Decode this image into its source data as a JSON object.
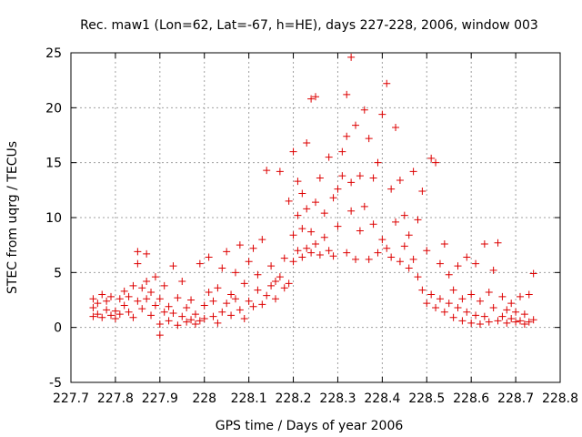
{
  "chart_data": {
    "type": "scatter",
    "title": "Rec. maw1 (Lon=62, Lat=-67, h=HE), days 227-228, 2006, window 003",
    "xlabel": "GPS time / Days of year 2006",
    "ylabel": "STEC from uqrg / TECUs",
    "xlim": [
      227.7,
      228.8
    ],
    "ylim": [
      -5,
      25
    ],
    "x_ticks": [
      227.7,
      227.8,
      227.9,
      228.0,
      228.1,
      228.2,
      228.3,
      228.4,
      228.5,
      228.6,
      228.7,
      228.8
    ],
    "x_tick_labels": [
      "227.7",
      "227.8",
      "227.9",
      "228",
      "228.1",
      "228.2",
      "228.3",
      "228.4",
      "228.5",
      "228.6",
      "228.7",
      "228.8"
    ],
    "y_ticks": [
      -5,
      0,
      5,
      10,
      15,
      20,
      25
    ],
    "y_tick_labels": [
      "-5",
      "0",
      "5",
      "10",
      "15",
      "20",
      "25"
    ],
    "grid": true,
    "marker": "plus",
    "color": "#dd0000",
    "points": [
      [
        227.75,
        1.0
      ],
      [
        227.75,
        1.8
      ],
      [
        227.75,
        2.6
      ],
      [
        227.76,
        1.2
      ],
      [
        227.76,
        2.2
      ],
      [
        227.77,
        0.9
      ],
      [
        227.77,
        3.0
      ],
      [
        227.78,
        1.6
      ],
      [
        227.78,
        2.4
      ],
      [
        227.79,
        1.1
      ],
      [
        227.79,
        2.8
      ],
      [
        227.8,
        1.5
      ],
      [
        227.8,
        0.8
      ],
      [
        227.81,
        2.6
      ],
      [
        227.81,
        1.2
      ],
      [
        227.82,
        2.0
      ],
      [
        227.82,
        3.3
      ],
      [
        227.83,
        1.4
      ],
      [
        227.83,
        2.8
      ],
      [
        227.84,
        3.8
      ],
      [
        227.84,
        0.9
      ],
      [
        227.85,
        2.4
      ],
      [
        227.85,
        6.9
      ],
      [
        227.85,
        5.8
      ],
      [
        227.86,
        1.7
      ],
      [
        227.86,
        3.6
      ],
      [
        227.87,
        2.6
      ],
      [
        227.87,
        4.2
      ],
      [
        227.87,
        6.7
      ],
      [
        227.88,
        1.1
      ],
      [
        227.88,
        3.2
      ],
      [
        227.89,
        2.0
      ],
      [
        227.89,
        4.6
      ],
      [
        227.9,
        0.3
      ],
      [
        227.9,
        2.6
      ],
      [
        227.9,
        -0.7
      ],
      [
        227.91,
        1.4
      ],
      [
        227.91,
        3.8
      ],
      [
        227.92,
        0.6
      ],
      [
        227.92,
        1.9
      ],
      [
        227.93,
        1.3
      ],
      [
        227.93,
        5.6
      ],
      [
        227.94,
        0.2
      ],
      [
        227.94,
        2.7
      ],
      [
        227.95,
        1.0
      ],
      [
        227.95,
        4.2
      ],
      [
        227.96,
        0.5
      ],
      [
        227.96,
        1.8
      ],
      [
        227.97,
        0.7
      ],
      [
        227.97,
        2.5
      ],
      [
        227.98,
        0.3
      ],
      [
        227.98,
        1.2
      ],
      [
        227.99,
        5.8
      ],
      [
        227.99,
        0.6
      ],
      [
        228.0,
        0.8
      ],
      [
        228.0,
        2.0
      ],
      [
        228.01,
        6.4
      ],
      [
        228.01,
        3.2
      ],
      [
        228.02,
        1.0
      ],
      [
        228.02,
        2.4
      ],
      [
        228.03,
        0.4
      ],
      [
        228.03,
        3.6
      ],
      [
        228.04,
        1.4
      ],
      [
        228.04,
        5.4
      ],
      [
        228.05,
        2.2
      ],
      [
        228.05,
        6.9
      ],
      [
        228.06,
        1.1
      ],
      [
        228.06,
        3.0
      ],
      [
        228.07,
        2.6
      ],
      [
        228.07,
        5.0
      ],
      [
        228.08,
        1.6
      ],
      [
        228.08,
        7.5
      ],
      [
        228.09,
        0.8
      ],
      [
        228.09,
        4.0
      ],
      [
        228.1,
        2.4
      ],
      [
        228.1,
        6.0
      ],
      [
        228.11,
        1.9
      ],
      [
        228.11,
        7.2
      ],
      [
        228.12,
        3.4
      ],
      [
        228.12,
        4.8
      ],
      [
        228.13,
        2.1
      ],
      [
        228.13,
        8.0
      ],
      [
        228.14,
        2.9
      ],
      [
        228.14,
        14.3
      ],
      [
        228.15,
        3.8
      ],
      [
        228.15,
        5.6
      ],
      [
        228.16,
        4.2
      ],
      [
        228.16,
        2.6
      ],
      [
        228.17,
        14.2
      ],
      [
        228.17,
        4.6
      ],
      [
        228.18,
        3.6
      ],
      [
        228.18,
        6.3
      ],
      [
        228.19,
        4.0
      ],
      [
        228.19,
        11.5
      ],
      [
        228.2,
        6.0
      ],
      [
        228.2,
        8.4
      ],
      [
        228.2,
        16.0
      ],
      [
        228.21,
        7.0
      ],
      [
        228.21,
        10.2
      ],
      [
        228.21,
        13.3
      ],
      [
        228.22,
        6.4
      ],
      [
        228.22,
        9.0
      ],
      [
        228.22,
        12.2
      ],
      [
        228.23,
        7.2
      ],
      [
        228.23,
        10.8
      ],
      [
        228.23,
        16.8
      ],
      [
        228.24,
        6.8
      ],
      [
        228.24,
        20.8
      ],
      [
        228.24,
        8.7
      ],
      [
        228.25,
        7.6
      ],
      [
        228.25,
        21.0
      ],
      [
        228.25,
        11.4
      ],
      [
        228.26,
        6.6
      ],
      [
        228.26,
        13.6
      ],
      [
        228.27,
        8.2
      ],
      [
        228.27,
        10.4
      ],
      [
        228.28,
        7.0
      ],
      [
        228.28,
        15.5
      ],
      [
        228.29,
        6.5
      ],
      [
        228.29,
        11.8
      ],
      [
        228.3,
        9.2
      ],
      [
        228.3,
        12.6
      ],
      [
        228.31,
        16.0
      ],
      [
        228.31,
        13.8
      ],
      [
        228.32,
        6.8
      ],
      [
        228.32,
        21.2
      ],
      [
        228.32,
        17.4
      ],
      [
        228.33,
        10.6
      ],
      [
        228.33,
        24.6
      ],
      [
        228.33,
        13.2
      ],
      [
        228.34,
        6.2
      ],
      [
        228.34,
        18.4
      ],
      [
        228.35,
        8.8
      ],
      [
        228.35,
        13.8
      ],
      [
        228.36,
        19.8
      ],
      [
        228.36,
        11.0
      ],
      [
        228.37,
        6.2
      ],
      [
        228.37,
        17.2
      ],
      [
        228.38,
        13.6
      ],
      [
        228.38,
        9.4
      ],
      [
        228.39,
        6.8
      ],
      [
        228.39,
        15.0
      ],
      [
        228.4,
        19.4
      ],
      [
        228.4,
        8.0
      ],
      [
        228.41,
        7.2
      ],
      [
        228.41,
        22.2
      ],
      [
        228.42,
        6.4
      ],
      [
        228.42,
        12.6
      ],
      [
        228.43,
        18.2
      ],
      [
        228.43,
        9.6
      ],
      [
        228.44,
        6.0
      ],
      [
        228.44,
        13.4
      ],
      [
        228.45,
        7.4
      ],
      [
        228.45,
        10.2
      ],
      [
        228.46,
        5.4
      ],
      [
        228.46,
        8.4
      ],
      [
        228.47,
        14.2
      ],
      [
        228.47,
        6.2
      ],
      [
        228.48,
        9.8
      ],
      [
        228.48,
        4.6
      ],
      [
        228.49,
        12.4
      ],
      [
        228.49,
        3.4
      ],
      [
        228.5,
        7.0
      ],
      [
        228.5,
        2.2
      ],
      [
        228.51,
        15.4
      ],
      [
        228.51,
        3.0
      ],
      [
        228.52,
        15.0
      ],
      [
        228.52,
        1.8
      ],
      [
        228.53,
        5.8
      ],
      [
        228.53,
        2.6
      ],
      [
        228.54,
        7.6
      ],
      [
        228.54,
        1.4
      ],
      [
        228.55,
        2.2
      ],
      [
        228.55,
        4.8
      ],
      [
        228.56,
        0.9
      ],
      [
        228.56,
        3.4
      ],
      [
        228.57,
        1.8
      ],
      [
        228.57,
        5.6
      ],
      [
        228.58,
        0.6
      ],
      [
        228.58,
        2.6
      ],
      [
        228.59,
        1.4
      ],
      [
        228.59,
        6.4
      ],
      [
        228.6,
        0.4
      ],
      [
        228.6,
        3.0
      ],
      [
        228.61,
        1.1
      ],
      [
        228.61,
        5.8
      ],
      [
        228.62,
        0.3
      ],
      [
        228.62,
        2.4
      ],
      [
        228.63,
        7.6
      ],
      [
        228.63,
        1.0
      ],
      [
        228.64,
        0.5
      ],
      [
        228.64,
        3.2
      ],
      [
        228.65,
        1.8
      ],
      [
        228.65,
        5.2
      ],
      [
        228.66,
        0.6
      ],
      [
        228.66,
        7.7
      ],
      [
        228.67,
        1.0
      ],
      [
        228.67,
        2.8
      ],
      [
        228.68,
        0.4
      ],
      [
        228.68,
        1.6
      ],
      [
        228.69,
        0.8
      ],
      [
        228.69,
        2.2
      ],
      [
        228.7,
        0.5
      ],
      [
        228.7,
        1.4
      ],
      [
        228.71,
        0.6
      ],
      [
        228.71,
        2.8
      ],
      [
        228.72,
        0.3
      ],
      [
        228.72,
        1.2
      ],
      [
        228.73,
        0.5
      ],
      [
        228.73,
        3.0
      ],
      [
        228.74,
        0.7
      ],
      [
        228.74,
        4.9
      ]
    ]
  }
}
